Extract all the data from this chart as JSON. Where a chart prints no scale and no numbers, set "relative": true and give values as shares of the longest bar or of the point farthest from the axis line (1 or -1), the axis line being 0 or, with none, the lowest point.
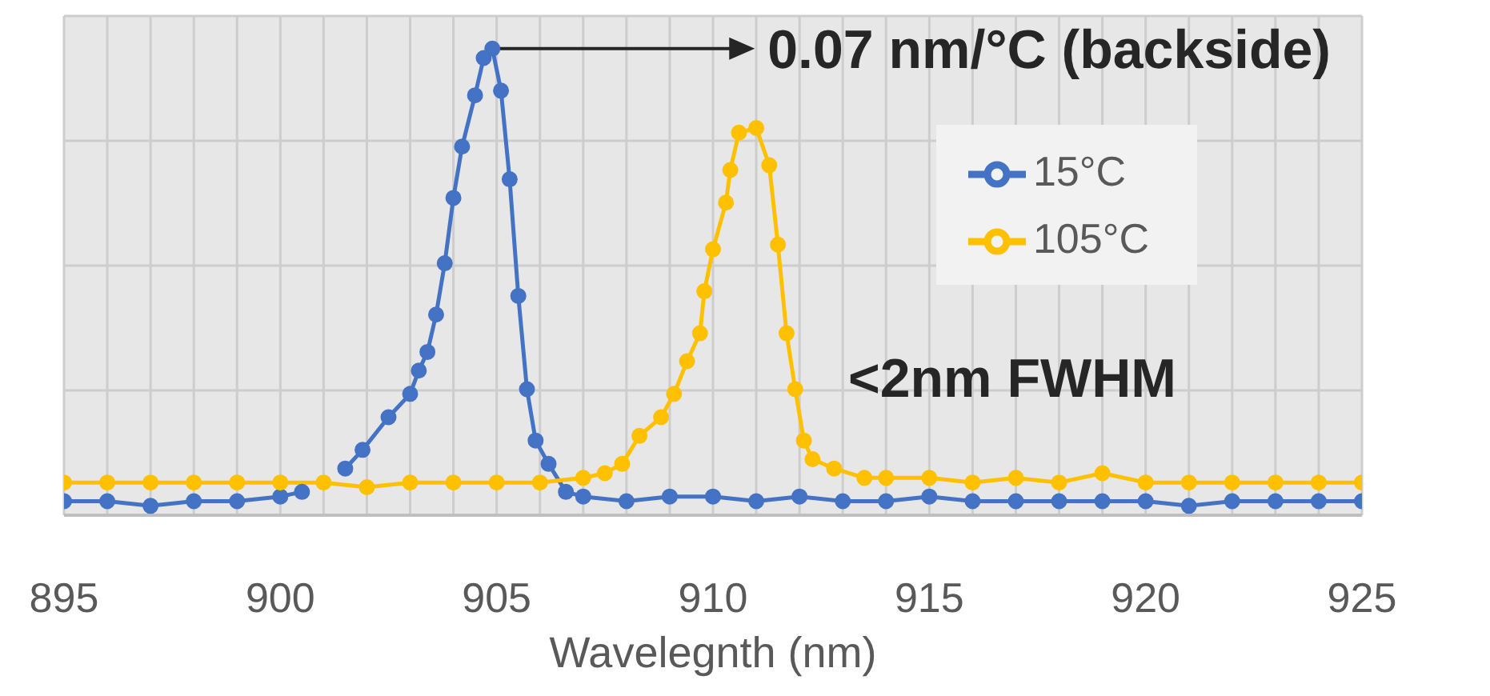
{
  "chart_data": {
    "type": "line",
    "xlabel": "Wavelegnth (nm)",
    "relative": true,
    "xlim": [
      895,
      925
    ],
    "xticks": [
      895,
      900,
      905,
      910,
      915,
      920,
      925
    ],
    "grid": true,
    "legend": "top right",
    "marker": "circle",
    "line_style": "solid",
    "annotations": [
      {
        "text": "0.07 nm/°C (backside)",
        "x": 904.9,
        "y": 1.0
      },
      "<2nm FWHM"
    ],
    "series": [
      {
        "name": "15°C",
        "color": "#4472c4",
        "x": [
          895,
          896,
          897,
          898,
          899,
          900,
          900.5,
          901,
          901.5,
          901.9,
          902.5,
          903.0,
          903.2,
          903.4,
          903.6,
          903.8,
          904.0,
          904.2,
          904.5,
          904.7,
          904.9,
          905.1,
          905.3,
          905.5,
          905.7,
          905.9,
          906.2,
          906.6,
          907,
          908,
          909,
          910,
          911,
          912,
          913,
          914,
          915,
          916,
          917,
          918,
          919,
          920,
          921,
          922,
          923,
          924,
          925
        ],
        "values": [
          0.03,
          0.03,
          0.02,
          0.03,
          0.03,
          0.04,
          0.05,
          null,
          0.1,
          0.14,
          0.21,
          0.26,
          0.31,
          0.35,
          0.43,
          0.54,
          0.68,
          0.79,
          0.9,
          0.98,
          1.0,
          0.91,
          0.72,
          0.47,
          0.27,
          0.16,
          0.11,
          0.05,
          0.04,
          0.03,
          0.04,
          0.04,
          0.03,
          0.04,
          0.03,
          0.03,
          0.04,
          0.03,
          0.03,
          0.03,
          0.03,
          0.03,
          0.02,
          0.03,
          0.03,
          0.03,
          0.03
        ]
      },
      {
        "name": "105°C",
        "color": "#ffc000",
        "x": [
          895,
          896,
          897,
          898,
          899,
          900,
          901,
          902,
          903,
          904,
          905,
          906,
          907,
          907.5,
          907.9,
          908.3,
          908.8,
          909.1,
          909.4,
          909.7,
          909.8,
          910.0,
          910.3,
          910.4,
          910.6,
          911.0,
          911.3,
          911.5,
          911.7,
          911.9,
          912.1,
          912.3,
          912.8,
          913.5,
          914,
          915,
          916,
          917,
          918,
          919,
          920,
          921,
          922,
          923,
          924,
          925
        ],
        "values": [
          0.07,
          0.07,
          0.07,
          0.07,
          0.07,
          0.07,
          0.07,
          0.06,
          0.07,
          0.07,
          0.07,
          0.07,
          0.08,
          0.09,
          0.11,
          0.17,
          0.21,
          0.26,
          0.33,
          0.39,
          0.48,
          0.57,
          0.67,
          0.74,
          0.82,
          0.83,
          0.75,
          0.58,
          0.39,
          0.27,
          0.16,
          0.12,
          0.1,
          0.08,
          0.08,
          0.08,
          0.07,
          0.08,
          0.07,
          0.09,
          0.07,
          0.07,
          0.07,
          0.07,
          0.07,
          0.07
        ]
      }
    ]
  }
}
